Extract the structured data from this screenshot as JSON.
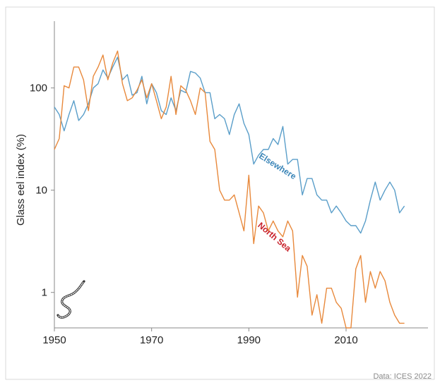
{
  "colors": {
    "elsewhere": "#5a9ec9",
    "north_sea": "#e8893c",
    "north_sea_label": "#c8202a",
    "elsewhere_label": "#3c86b8",
    "axis": "#888888",
    "frame": "#d9d9d9"
  },
  "credit": "Data: ICES 2022",
  "icon": "eel-icon",
  "chart_data": {
    "type": "line",
    "ylabel": "Glass eel index (%)",
    "xlabel": "",
    "yscale": "log",
    "xlim": [
      1950,
      2023
    ],
    "ylim": [
      0.45,
      450
    ],
    "xticks": [
      1950,
      1970,
      1990,
      2010
    ],
    "xtick_labels": [
      "1950",
      "1970",
      "1990",
      "2010"
    ],
    "yticks": [
      1,
      10,
      100
    ],
    "ytick_labels": [
      "1",
      "10",
      "100"
    ],
    "grid": false,
    "legend": "inline labels",
    "series": [
      {
        "name": "Elsewhere",
        "x": [
          1950,
          1951,
          1952,
          1953,
          1954,
          1955,
          1956,
          1957,
          1958,
          1959,
          1960,
          1961,
          1962,
          1963,
          1964,
          1965,
          1966,
          1967,
          1968,
          1969,
          1970,
          1971,
          1972,
          1973,
          1974,
          1975,
          1976,
          1977,
          1978,
          1979,
          1980,
          1981,
          1982,
          1983,
          1984,
          1985,
          1986,
          1987,
          1988,
          1989,
          1990,
          1991,
          1992,
          1993,
          1994,
          1995,
          1996,
          1997,
          1998,
          1999,
          2000,
          2001,
          2002,
          2003,
          2004,
          2005,
          2006,
          2007,
          2008,
          2009,
          2010,
          2011,
          2012,
          2013,
          2014,
          2015,
          2016,
          2017,
          2018,
          2019,
          2020,
          2021,
          2022
        ],
        "values": [
          65,
          55,
          38,
          55,
          75,
          48,
          55,
          70,
          100,
          110,
          150,
          125,
          160,
          200,
          120,
          135,
          85,
          90,
          130,
          70,
          110,
          90,
          60,
          55,
          80,
          60,
          95,
          90,
          145,
          140,
          125,
          90,
          90,
          50,
          55,
          50,
          35,
          55,
          70,
          45,
          35,
          18,
          22,
          25,
          25,
          32,
          28,
          42,
          18,
          20,
          20,
          9,
          13,
          13,
          9,
          8,
          8,
          6,
          7,
          6,
          5,
          4.5,
          4.5,
          3.8,
          5,
          8,
          12,
          8,
          10,
          12,
          10,
          6,
          7
        ]
      },
      {
        "name": "North Sea",
        "x": [
          1950,
          1951,
          1952,
          1953,
          1954,
          1955,
          1956,
          1957,
          1958,
          1959,
          1960,
          1961,
          1962,
          1963,
          1964,
          1965,
          1966,
          1967,
          1968,
          1969,
          1970,
          1971,
          1972,
          1973,
          1974,
          1975,
          1976,
          1977,
          1978,
          1979,
          1980,
          1981,
          1982,
          1983,
          1984,
          1985,
          1986,
          1987,
          1988,
          1989,
          1990,
          1991,
          1992,
          1993,
          1994,
          1995,
          1996,
          1997,
          1998,
          1999,
          2000,
          2001,
          2002,
          2003,
          2004,
          2005,
          2006,
          2007,
          2008,
          2009,
          2010,
          2011,
          2012,
          2013,
          2014,
          2015,
          2016,
          2017,
          2018,
          2019,
          2020,
          2021,
          2022
        ],
        "values": [
          25,
          32,
          105,
          100,
          160,
          160,
          120,
          60,
          130,
          160,
          210,
          120,
          175,
          230,
          110,
          75,
          80,
          95,
          120,
          80,
          110,
          75,
          50,
          65,
          130,
          55,
          105,
          95,
          75,
          55,
          100,
          90,
          30,
          25,
          10,
          8,
          8,
          9,
          6,
          4,
          14,
          3,
          7,
          6,
          4,
          5,
          4,
          3.5,
          5,
          4,
          0.9,
          2.3,
          1.8,
          0.6,
          0.95,
          0.5,
          1.1,
          1.1,
          0.8,
          0.7,
          0.4,
          0.45,
          1.7,
          2.3,
          0.8,
          1.6,
          1.1,
          1.6,
          1.3,
          0.8,
          0.6,
          0.5,
          0.5
        ]
      }
    ]
  }
}
